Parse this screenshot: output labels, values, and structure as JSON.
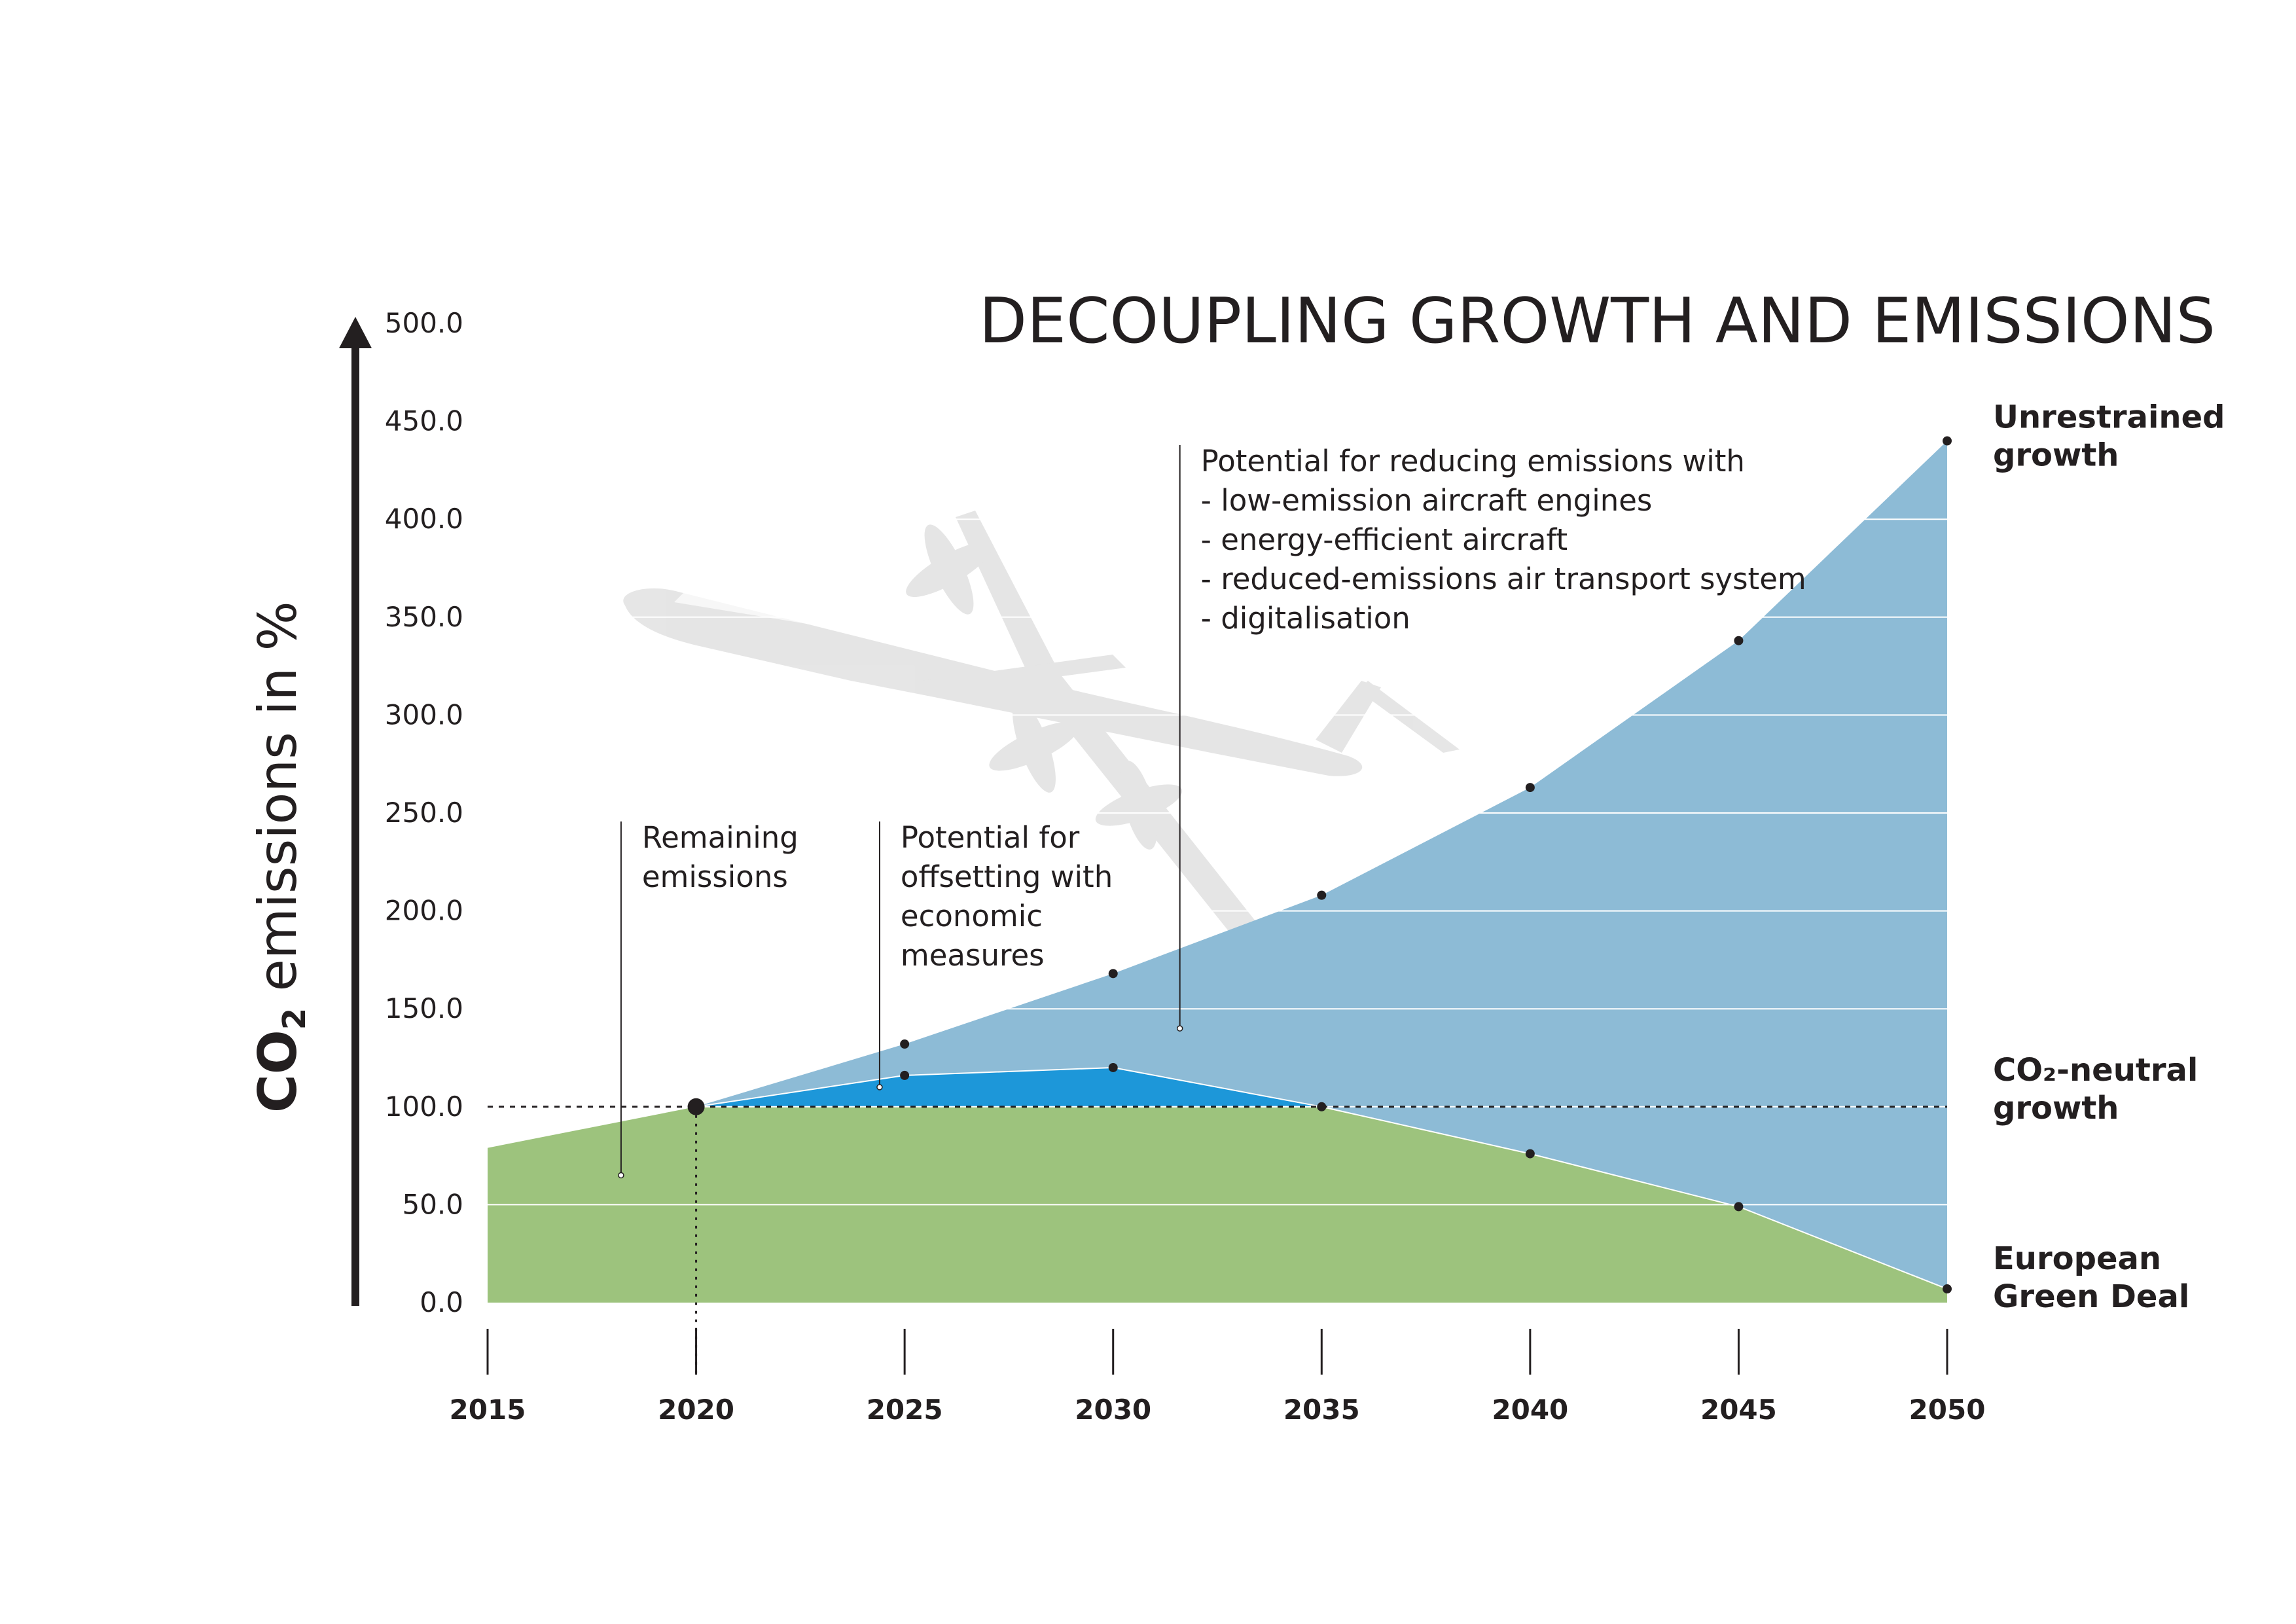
{
  "chart_data": {
    "type": "area",
    "title": "DECOUPLING GROWTH AND EMISSIONS",
    "ylabel_prefix": "CO",
    "ylabel_sub": "2",
    "ylabel_suffix": " emissions in %",
    "ylim": [
      0,
      500
    ],
    "xlim": [
      2015,
      2050
    ],
    "y_ticks": [
      "0.0",
      "50.0",
      "100.0",
      "150.0",
      "200.0",
      "250.0",
      "300.0",
      "350.0",
      "400.0",
      "450.0",
      "500.0"
    ],
    "x_ticks": [
      "2015",
      "2020",
      "2025",
      "2030",
      "2035",
      "2040",
      "2045",
      "2050"
    ],
    "grid": true,
    "reference_line": 100,
    "series": [
      {
        "name": "Unrestrained growth",
        "color": "#8dbbd6",
        "x": [
          2020,
          2025,
          2030,
          2035,
          2040,
          2045,
          2050
        ],
        "y": [
          100,
          132,
          168,
          208,
          263,
          338,
          440
        ]
      },
      {
        "name": "CO₂-neutral growth",
        "color": "#1d97d9",
        "x": [
          2020,
          2025,
          2030,
          2035
        ],
        "y": [
          100,
          116,
          120,
          100
        ]
      },
      {
        "name": "European Green Deal",
        "color": "#9dc37d",
        "x": [
          2015,
          2020,
          2025,
          2030,
          2035,
          2040,
          2045,
          2050
        ],
        "y": [
          79,
          100,
          100,
          100,
          100,
          76,
          49,
          7
        ]
      }
    ],
    "end_labels": [
      {
        "lines": [
          "Unrestrained",
          "growth"
        ],
        "y": 440
      },
      {
        "lines": [
          "CO₂-neutral",
          "growth"
        ],
        "y": 100
      },
      {
        "lines": [
          "European",
          "Green Deal"
        ],
        "y": 7
      }
    ],
    "annotations": [
      {
        "lines": [
          "Remaining",
          "emissions"
        ],
        "line_x": 2018.2,
        "point_y": 65
      },
      {
        "lines": [
          "Potential for",
          "offsetting with",
          "economic",
          "measures"
        ],
        "line_x": 2024.4,
        "point_y": 110
      },
      {
        "lines": [
          "Potential for reducing emissions with",
          "- low-emission aircraft engines",
          "- energy-efficient aircraft",
          "- reduced-emissions air transport system",
          "- digitalisation"
        ],
        "line_x": 2031.6,
        "point_y": 140
      }
    ]
  },
  "colors": {
    "text": "#231f20",
    "watermark": "#e3e3e3",
    "gridline": "#ffffff"
  },
  "watermark": "aircraft-silhouette"
}
